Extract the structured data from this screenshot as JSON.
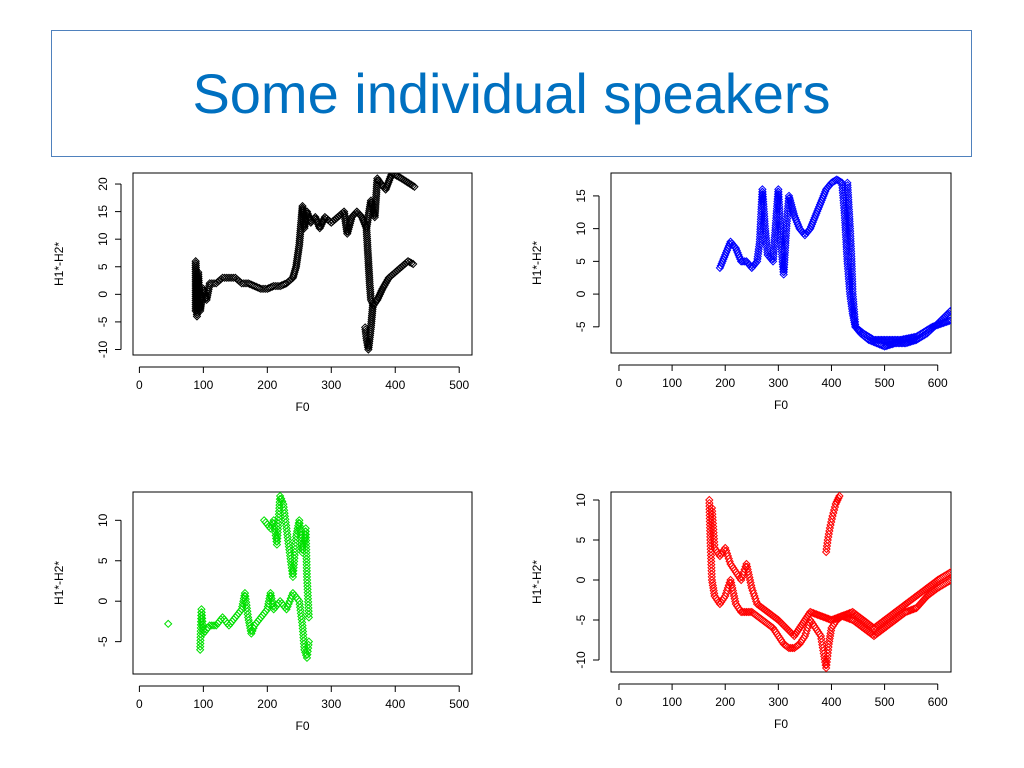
{
  "slide": {
    "title": "Some individual speakers"
  },
  "chart_data": [
    {
      "type": "scatter",
      "marker": "open-diamond",
      "color": "#000000",
      "xlabel": "F0",
      "ylabel": "H1*-H2*",
      "xlim": [
        -10,
        520
      ],
      "ylim": [
        -11,
        22
      ],
      "xticks": [
        0,
        100,
        200,
        300,
        400,
        500
      ],
      "yticks": [
        -10,
        -5,
        0,
        5,
        10,
        15,
        20
      ],
      "grid": false,
      "tracks": [
        [
          [
            88,
            -3
          ],
          [
            88,
            6
          ],
          [
            90,
            -4
          ],
          [
            92,
            4
          ],
          [
            95,
            -3
          ],
          [
            100,
            1
          ],
          [
            105,
            -1
          ],
          [
            110,
            2
          ],
          [
            120,
            2
          ],
          [
            130,
            3
          ],
          [
            140,
            3
          ],
          [
            150,
            3
          ],
          [
            160,
            2
          ],
          [
            170,
            2
          ],
          [
            180,
            1.5
          ],
          [
            190,
            1
          ],
          [
            200,
            1
          ],
          [
            210,
            1.5
          ],
          [
            220,
            1.5
          ],
          [
            230,
            2
          ],
          [
            240,
            3
          ],
          [
            245,
            5
          ],
          [
            250,
            9
          ],
          [
            255,
            16
          ],
          [
            258,
            12
          ],
          [
            262,
            15
          ],
          [
            268,
            13
          ],
          [
            275,
            14
          ],
          [
            282,
            12
          ],
          [
            290,
            14
          ],
          [
            300,
            13
          ],
          [
            310,
            14
          ],
          [
            320,
            15
          ],
          [
            325,
            11
          ],
          [
            332,
            14
          ],
          [
            340,
            15
          ],
          [
            348,
            14
          ],
          [
            355,
            12
          ],
          [
            362,
            17
          ],
          [
            368,
            14
          ],
          [
            372,
            21
          ],
          [
            378,
            20
          ],
          [
            385,
            19
          ],
          [
            395,
            22
          ],
          [
            410,
            21
          ],
          [
            430,
            19.5
          ]
        ],
        [
          [
            355,
            12
          ],
          [
            358,
            6
          ],
          [
            360,
            2
          ],
          [
            362,
            -1
          ],
          [
            366,
            -2
          ],
          [
            372,
            -1
          ],
          [
            380,
            1
          ],
          [
            390,
            3
          ],
          [
            400,
            4
          ],
          [
            410,
            5
          ],
          [
            420,
            6
          ],
          [
            428,
            5.5
          ]
        ],
        [
          [
            365,
            -2
          ],
          [
            362,
            -6
          ],
          [
            358,
            -10
          ],
          [
            355,
            -8
          ],
          [
            353,
            -6
          ]
        ]
      ]
    },
    {
      "type": "scatter",
      "marker": "open-diamond",
      "color": "#0000ff",
      "xlabel": "F0",
      "ylabel": "H1*-H2*",
      "xlim": [
        -15,
        625
      ],
      "ylim": [
        -9,
        18.5
      ],
      "xticks": [
        0,
        100,
        200,
        300,
        400,
        500,
        600
      ],
      "yticks": [
        -5,
        0,
        5,
        10,
        15
      ],
      "grid": false,
      "tracks": [
        [
          [
            190,
            4
          ],
          [
            200,
            6
          ],
          [
            210,
            8
          ],
          [
            220,
            7
          ],
          [
            230,
            5
          ],
          [
            240,
            5
          ],
          [
            250,
            4
          ],
          [
            260,
            5
          ],
          [
            265,
            8
          ],
          [
            270,
            16
          ],
          [
            275,
            10
          ],
          [
            280,
            6
          ],
          [
            290,
            5
          ],
          [
            300,
            16
          ],
          [
            305,
            8
          ],
          [
            310,
            3
          ],
          [
            315,
            10
          ],
          [
            320,
            15
          ],
          [
            330,
            12
          ],
          [
            340,
            10
          ],
          [
            350,
            9
          ],
          [
            360,
            10
          ],
          [
            370,
            12
          ],
          [
            380,
            14
          ],
          [
            390,
            16
          ],
          [
            400,
            17
          ],
          [
            410,
            17.5
          ],
          [
            420,
            17
          ],
          [
            425,
            12
          ],
          [
            430,
            5
          ],
          [
            435,
            0
          ],
          [
            440,
            -3
          ],
          [
            445,
            -5
          ],
          [
            455,
            -6
          ],
          [
            470,
            -7
          ],
          [
            485,
            -7.5
          ],
          [
            500,
            -8
          ],
          [
            520,
            -7.5
          ],
          [
            540,
            -7.5
          ],
          [
            560,
            -7
          ],
          [
            580,
            -6
          ],
          [
            600,
            -4.5
          ],
          [
            625,
            -2.5
          ]
        ],
        [
          [
            430,
            17
          ],
          [
            435,
            10
          ],
          [
            438,
            5
          ],
          [
            440,
            0
          ],
          [
            445,
            -5
          ],
          [
            460,
            -6
          ],
          [
            480,
            -7
          ],
          [
            500,
            -7
          ],
          [
            530,
            -7
          ],
          [
            560,
            -6.5
          ],
          [
            590,
            -5
          ],
          [
            625,
            -4
          ]
        ]
      ]
    },
    {
      "type": "scatter",
      "marker": "open-diamond",
      "color": "#00e000",
      "xlabel": "F0",
      "ylabel": "H1*-H2*",
      "xlim": [
        -10,
        520
      ],
      "ylim": [
        -9,
        13.5
      ],
      "xticks": [
        0,
        100,
        200,
        300,
        400,
        500
      ],
      "yticks": [
        -5,
        0,
        5,
        10
      ],
      "grid": false,
      "tracks": [
        [
          [
            95,
            -6
          ],
          [
            97,
            -1
          ],
          [
            100,
            -4
          ],
          [
            110,
            -3
          ],
          [
            120,
            -3
          ],
          [
            130,
            -2
          ],
          [
            140,
            -3
          ],
          [
            150,
            -2
          ],
          [
            160,
            -1
          ],
          [
            165,
            1
          ],
          [
            170,
            -2
          ],
          [
            175,
            -4
          ],
          [
            180,
            -3
          ],
          [
            190,
            -2
          ],
          [
            200,
            -1
          ],
          [
            205,
            1
          ],
          [
            210,
            -1
          ],
          [
            220,
            0
          ],
          [
            230,
            -1
          ],
          [
            240,
            1
          ],
          [
            250,
            0
          ],
          [
            255,
            -3
          ],
          [
            258,
            -6
          ],
          [
            262,
            -7
          ],
          [
            265,
            -5
          ]
        ],
        [
          [
            195,
            10
          ],
          [
            205,
            9
          ],
          [
            210,
            10
          ],
          [
            215,
            7
          ],
          [
            220,
            13
          ],
          [
            225,
            12
          ],
          [
            230,
            9
          ],
          [
            235,
            6
          ],
          [
            240,
            3
          ],
          [
            245,
            8
          ],
          [
            250,
            10
          ],
          [
            255,
            6
          ],
          [
            260,
            9
          ],
          [
            262,
            3
          ],
          [
            265,
            -2
          ]
        ],
        [
          [
            45,
            -2.8
          ]
        ]
      ]
    },
    {
      "type": "scatter",
      "marker": "open-diamond",
      "color": "#ff0000",
      "xlabel": "F0",
      "ylabel": "H1*-H2*",
      "xlim": [
        -15,
        625
      ],
      "ylim": [
        -11.5,
        11
      ],
      "xticks": [
        0,
        100,
        200,
        300,
        400,
        500,
        600
      ],
      "yticks": [
        -10,
        -5,
        0,
        5,
        10
      ],
      "grid": false,
      "tracks": [
        [
          [
            170,
            10
          ],
          [
            172,
            5
          ],
          [
            175,
            0
          ],
          [
            180,
            -2
          ],
          [
            190,
            -3
          ],
          [
            200,
            -2
          ],
          [
            210,
            0
          ],
          [
            220,
            -3
          ],
          [
            230,
            -4
          ],
          [
            240,
            -4
          ],
          [
            250,
            -4
          ],
          [
            260,
            -4.5
          ],
          [
            270,
            -5
          ],
          [
            280,
            -5.5
          ],
          [
            290,
            -6
          ],
          [
            300,
            -7
          ],
          [
            310,
            -8
          ],
          [
            320,
            -8.5
          ],
          [
            330,
            -8.5
          ],
          [
            340,
            -8
          ],
          [
            350,
            -7
          ],
          [
            360,
            -5
          ],
          [
            370,
            -6
          ],
          [
            380,
            -7
          ],
          [
            390,
            -11
          ],
          [
            395,
            -8
          ],
          [
            400,
            -6
          ],
          [
            410,
            -5
          ],
          [
            420,
            -4.5
          ],
          [
            440,
            -5
          ],
          [
            460,
            -6
          ],
          [
            480,
            -7
          ],
          [
            500,
            -6
          ],
          [
            520,
            -5
          ],
          [
            540,
            -4
          ],
          [
            560,
            -3.5
          ],
          [
            580,
            -2
          ],
          [
            600,
            -1
          ],
          [
            625,
            0
          ]
        ],
        [
          [
            175,
            9
          ],
          [
            180,
            4
          ],
          [
            190,
            3
          ],
          [
            200,
            4
          ],
          [
            210,
            2
          ],
          [
            220,
            1
          ],
          [
            230,
            0
          ],
          [
            240,
            2
          ],
          [
            250,
            -1
          ],
          [
            260,
            -3
          ],
          [
            280,
            -4
          ],
          [
            300,
            -5
          ],
          [
            330,
            -7
          ],
          [
            360,
            -4
          ],
          [
            400,
            -5
          ],
          [
            440,
            -4
          ],
          [
            480,
            -6
          ],
          [
            520,
            -4
          ],
          [
            560,
            -2
          ],
          [
            600,
            0
          ],
          [
            625,
            1
          ]
        ],
        [
          [
            390,
            3.5
          ],
          [
            393,
            5
          ],
          [
            397,
            6.5
          ],
          [
            402,
            8
          ],
          [
            408,
            9.5
          ],
          [
            415,
            10.5
          ]
        ]
      ]
    }
  ]
}
